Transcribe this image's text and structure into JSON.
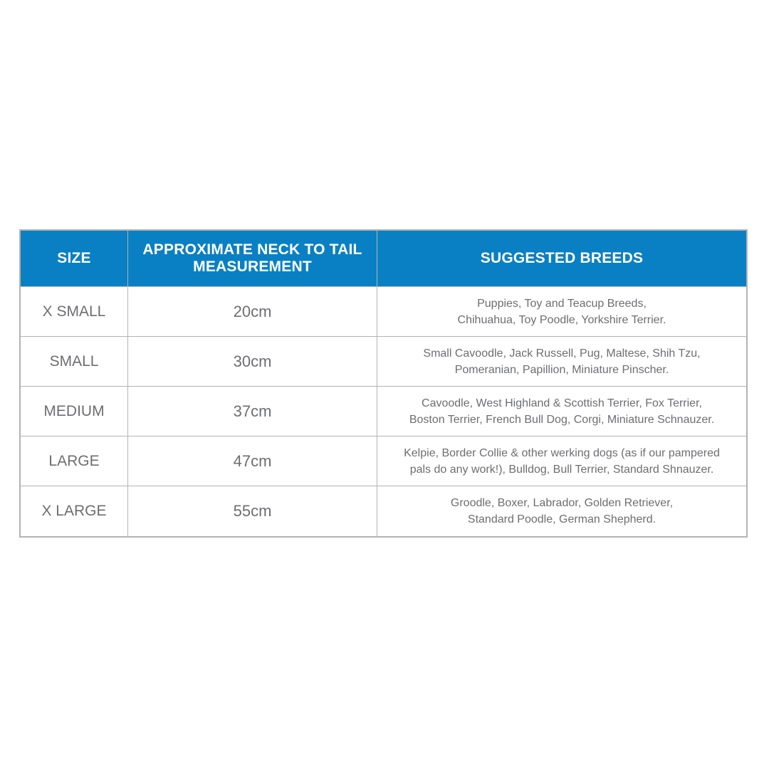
{
  "colors": {
    "header_bg": "#0a80c4",
    "header_text": "#ffffff",
    "body_text": "#6d6e71",
    "border": "#b3b3b3",
    "page_bg": "#ffffff"
  },
  "chart_data": {
    "type": "table",
    "title": "",
    "columns": [
      "SIZE",
      "APPROXIMATE NECK TO TAIL MEASUREMENT",
      "SUGGESTED BREEDS"
    ],
    "header": {
      "size": "SIZE",
      "measurement_line1": "APPROXIMATE NECK TO TAIL",
      "measurement_line2": "MEASUREMENT",
      "breeds": "SUGGESTED BREEDS"
    },
    "measurements_cm": [
      20,
      30,
      37,
      47,
      55
    ],
    "rows": [
      {
        "size": "X SMALL",
        "measurement": "20cm",
        "breeds_line1": "Puppies, Toy and Teacup Breeds,",
        "breeds_line2": "Chihuahua, Toy Poodle, Yorkshire Terrier."
      },
      {
        "size": "SMALL",
        "measurement": "30cm",
        "breeds_line1": "Small Cavoodle, Jack Russell, Pug, Maltese, Shih Tzu,",
        "breeds_line2": "Pomeranian, Papillion, Miniature Pinscher."
      },
      {
        "size": "MEDIUM",
        "measurement": "37cm",
        "breeds_line1": "Cavoodle, West Highland & Scottish Terrier, Fox Terrier,",
        "breeds_line2": "Boston Terrier, French Bull Dog, Corgi, Miniature Schnauzer."
      },
      {
        "size": "LARGE",
        "measurement": "47cm",
        "breeds_line1": "Kelpie, Border Collie & other werking dogs (as if our pampered",
        "breeds_line2": "pals do any work!), Bulldog, Bull Terrier, Standard Shnauzer."
      },
      {
        "size": "X LARGE",
        "measurement": "55cm",
        "breeds_line1": "Groodle, Boxer, Labrador,  Golden Retriever,",
        "breeds_line2": "Standard Poodle, German Shepherd."
      }
    ]
  }
}
